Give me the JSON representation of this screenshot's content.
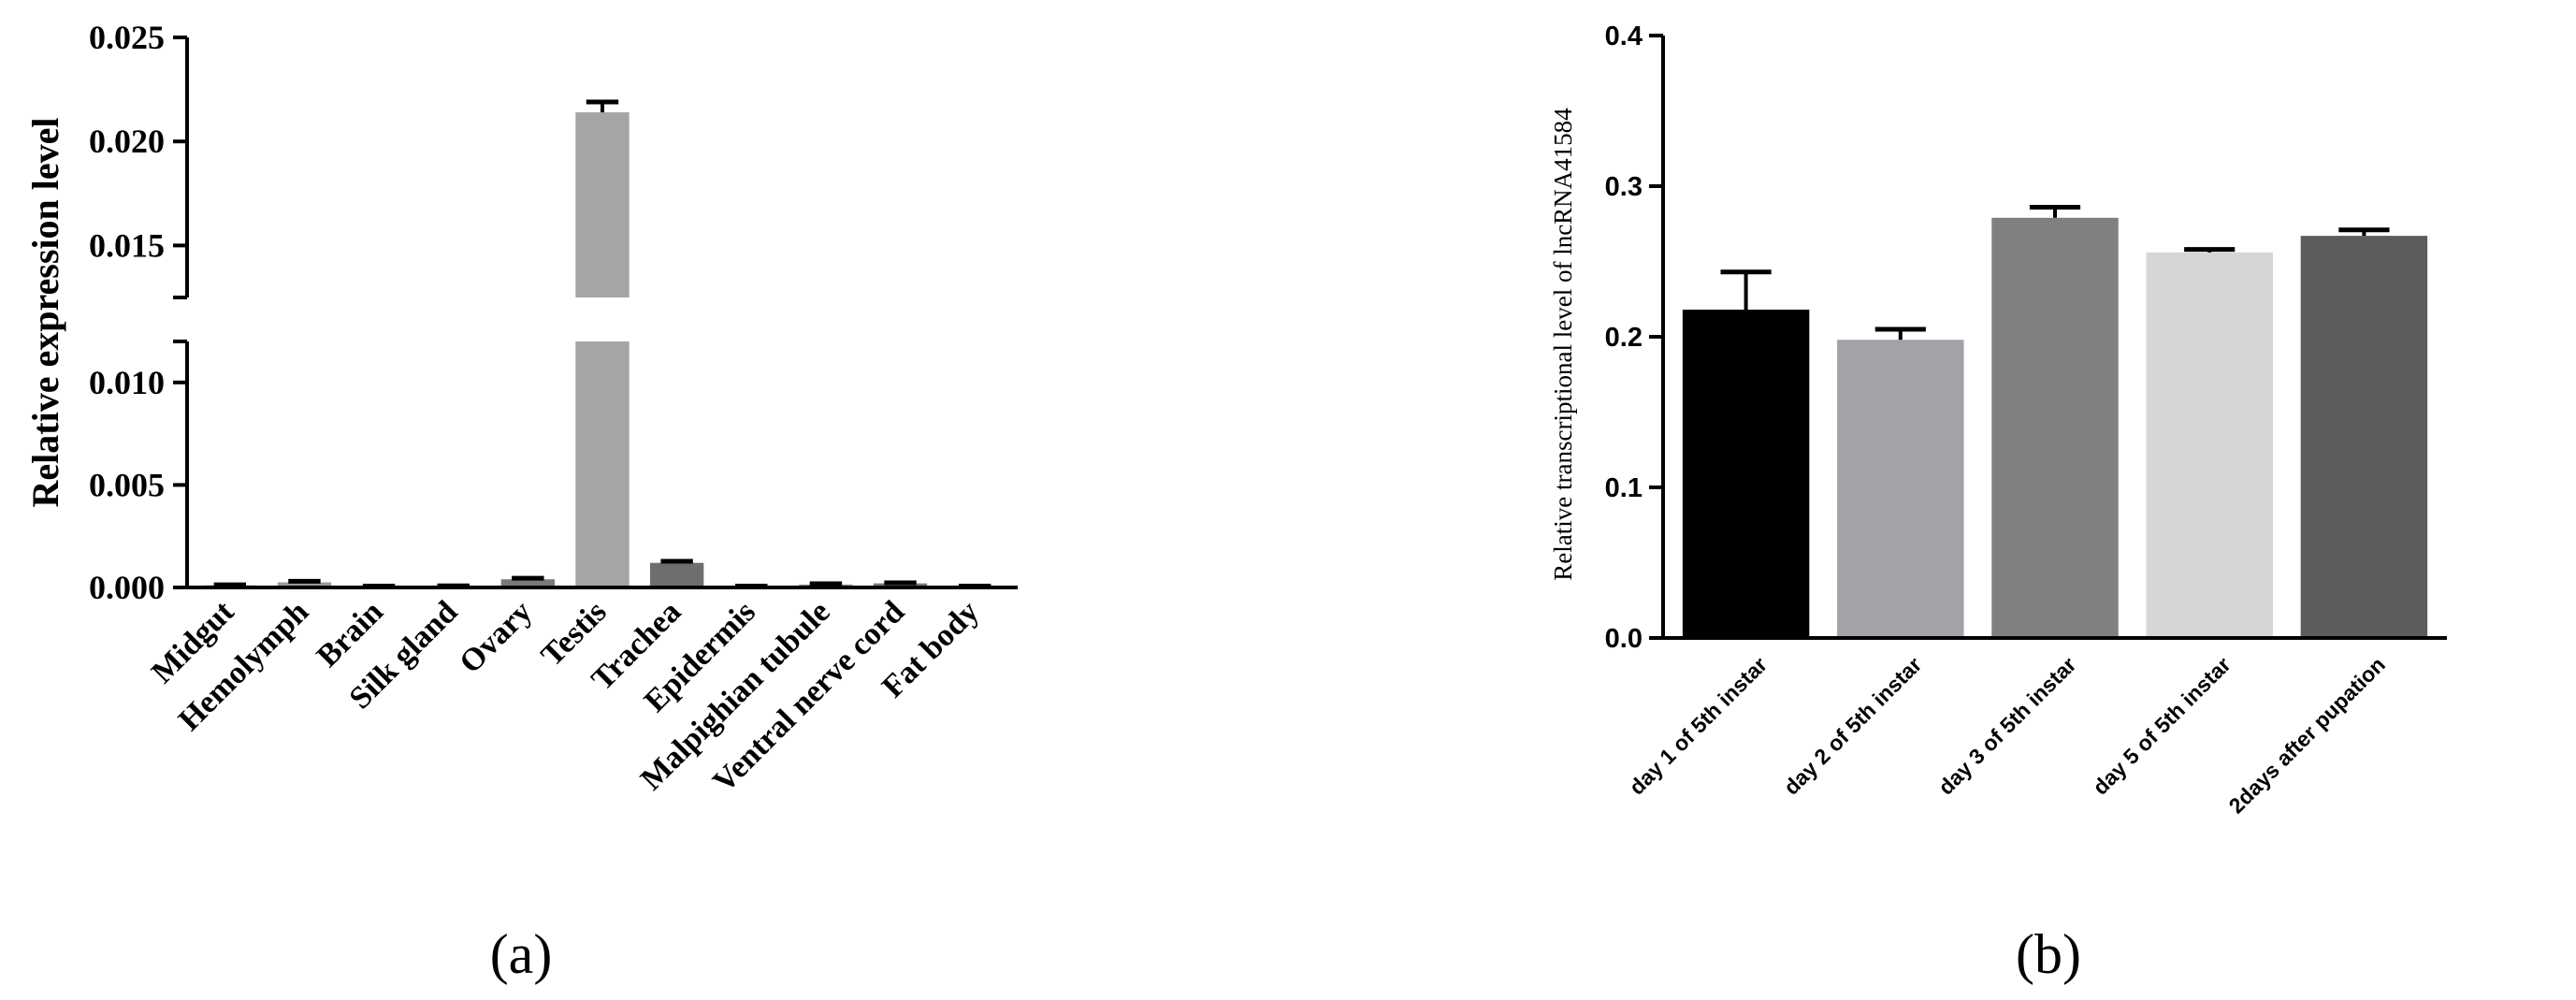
{
  "chart_data": [
    {
      "type": "bar",
      "panel_label": "(a)",
      "ylabel": "Relative expression level",
      "xlabel": "",
      "categories": [
        "Midgut",
        "Hemolymph",
        "Brain",
        "Silk gland",
        "Ovary",
        "Testis",
        "Trachea",
        "Epidermis",
        "Malpighian tubule",
        "Ventral nerve cord",
        "Fat body"
      ],
      "values": [
        0.0001,
        0.00025,
        5e-05,
        5e-05,
        0.0004,
        0.0214,
        0.0012,
        5e-05,
        0.00015,
        0.0002,
        5e-05
      ],
      "errors": [
        3e-05,
        5e-05,
        2e-05,
        3e-05,
        5e-05,
        0.0005,
        8e-05,
        2e-05,
        3e-05,
        3e-05,
        2e-05
      ],
      "bar_colors": [
        "#6e6e6e",
        "#9a9a9a",
        "#7a7a7a",
        "#8a8a8a",
        "#7a7a7a",
        "#a5a5a8",
        "#6e6e6e",
        "#8a8a8a",
        "#9a9a9a",
        "#7a7a7a",
        "#8a8a8a"
      ],
      "ylim": [
        0,
        0.025
      ],
      "broken_axis": {
        "lower": [
          0,
          0.012
        ],
        "upper": [
          0.0125,
          0.025
        ]
      },
      "yticks_lower": [
        "0.000",
        "0.005",
        "0.010"
      ],
      "yticks_upper": [
        "0.015",
        "0.020",
        "0.025"
      ],
      "grid": false
    },
    {
      "type": "bar",
      "panel_label": "(b)",
      "ylabel": "Relative transcriptional level of lncRNA41584",
      "xlabel": "",
      "categories": [
        "day 1 of 5th instar",
        "day 2 of 5th instar",
        "day 3 of 5th instar",
        "day 5 of 5th instar",
        "2days after pupation"
      ],
      "values": [
        0.218,
        0.198,
        0.279,
        0.256,
        0.267
      ],
      "errors": [
        0.025,
        0.007,
        0.007,
        0.002,
        0.004
      ],
      "bar_colors": [
        "#000000",
        "#a3a3a7",
        "#808080",
        "#d6d6d6",
        "#5c5c5c"
      ],
      "ylim": [
        0,
        0.4
      ],
      "yticks": [
        "0.0",
        "0.1",
        "0.2",
        "0.3",
        "0.4"
      ],
      "grid": false
    }
  ]
}
